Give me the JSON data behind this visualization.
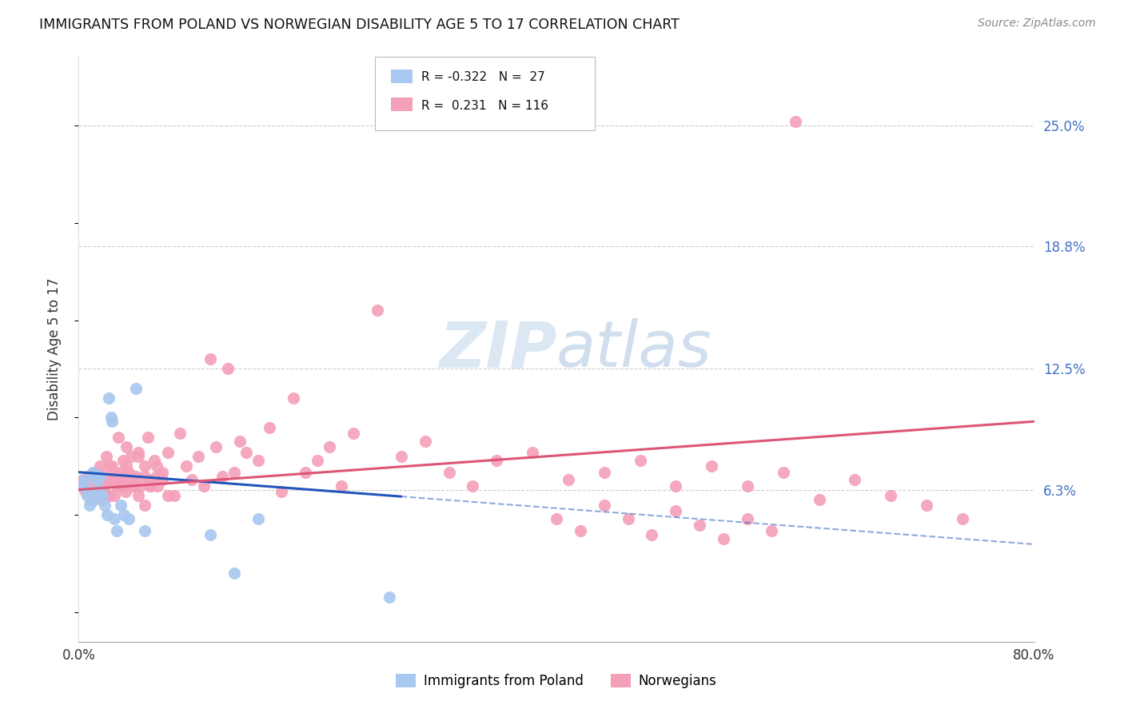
{
  "title": "IMMIGRANTS FROM POLAND VS NORWEGIAN DISABILITY AGE 5 TO 17 CORRELATION CHART",
  "source": "Source: ZipAtlas.com",
  "ylabel": "Disability Age 5 to 17",
  "ytick_labels": [
    "6.3%",
    "12.5%",
    "18.8%",
    "25.0%"
  ],
  "ytick_values": [
    0.063,
    0.125,
    0.188,
    0.25
  ],
  "xmin": 0.0,
  "xmax": 0.8,
  "ymin": -0.015,
  "ymax": 0.285,
  "legend_r_blue": "-0.322",
  "legend_n_blue": "27",
  "legend_r_pink": "0.231",
  "legend_n_pink": "116",
  "blue_color": "#a8c8f0",
  "pink_color": "#f4a0b8",
  "trendline_blue_color": "#2255bb",
  "trendline_pink_color": "#dd5577",
  "blue_scatter_x": [
    0.003,
    0.005,
    0.007,
    0.009,
    0.01,
    0.012,
    0.013,
    0.015,
    0.017,
    0.018,
    0.02,
    0.022,
    0.024,
    0.025,
    0.027,
    0.028,
    0.03,
    0.032,
    0.035,
    0.038,
    0.042,
    0.048,
    0.055,
    0.11,
    0.13,
    0.15,
    0.26
  ],
  "blue_scatter_y": [
    0.065,
    0.068,
    0.06,
    0.055,
    0.062,
    0.072,
    0.058,
    0.068,
    0.063,
    0.07,
    0.06,
    0.055,
    0.05,
    0.11,
    0.1,
    0.098,
    0.048,
    0.042,
    0.055,
    0.05,
    0.048,
    0.115,
    0.042,
    0.04,
    0.02,
    0.048,
    0.008
  ],
  "pink_scatter_x": [
    0.002,
    0.004,
    0.006,
    0.008,
    0.01,
    0.012,
    0.013,
    0.015,
    0.016,
    0.018,
    0.019,
    0.02,
    0.021,
    0.022,
    0.023,
    0.025,
    0.026,
    0.028,
    0.03,
    0.032,
    0.033,
    0.035,
    0.037,
    0.039,
    0.04,
    0.042,
    0.044,
    0.046,
    0.048,
    0.05,
    0.052,
    0.055,
    0.058,
    0.06,
    0.063,
    0.066,
    0.07,
    0.075,
    0.08,
    0.085,
    0.09,
    0.095,
    0.1,
    0.105,
    0.11,
    0.115,
    0.12,
    0.125,
    0.13,
    0.135,
    0.14,
    0.15,
    0.16,
    0.17,
    0.18,
    0.19,
    0.2,
    0.21,
    0.22,
    0.23,
    0.25,
    0.27,
    0.29,
    0.31,
    0.33,
    0.35,
    0.38,
    0.41,
    0.44,
    0.47,
    0.5,
    0.53,
    0.56,
    0.59,
    0.62,
    0.65,
    0.68,
    0.71,
    0.74,
    0.6,
    0.03,
    0.035,
    0.04,
    0.045,
    0.05,
    0.055,
    0.06,
    0.065,
    0.07,
    0.075,
    0.02,
    0.025,
    0.03,
    0.035,
    0.04,
    0.045,
    0.05,
    0.055,
    0.06,
    0.065,
    0.015,
    0.02,
    0.025,
    0.03,
    0.035,
    0.04,
    0.4,
    0.42,
    0.44,
    0.46,
    0.48,
    0.5,
    0.52,
    0.54,
    0.56,
    0.58
  ],
  "pink_scatter_y": [
    0.065,
    0.068,
    0.062,
    0.07,
    0.058,
    0.065,
    0.072,
    0.06,
    0.068,
    0.075,
    0.063,
    0.058,
    0.07,
    0.065,
    0.08,
    0.068,
    0.06,
    0.075,
    0.072,
    0.065,
    0.09,
    0.068,
    0.078,
    0.062,
    0.085,
    0.072,
    0.08,
    0.065,
    0.07,
    0.082,
    0.065,
    0.075,
    0.09,
    0.068,
    0.078,
    0.065,
    0.072,
    0.082,
    0.06,
    0.092,
    0.075,
    0.068,
    0.08,
    0.065,
    0.13,
    0.085,
    0.07,
    0.125,
    0.072,
    0.088,
    0.082,
    0.078,
    0.095,
    0.062,
    0.11,
    0.072,
    0.078,
    0.085,
    0.065,
    0.092,
    0.155,
    0.08,
    0.088,
    0.072,
    0.065,
    0.078,
    0.082,
    0.068,
    0.072,
    0.078,
    0.065,
    0.075,
    0.065,
    0.072,
    0.058,
    0.068,
    0.06,
    0.055,
    0.048,
    0.252,
    0.072,
    0.068,
    0.075,
    0.065,
    0.08,
    0.07,
    0.065,
    0.075,
    0.068,
    0.06,
    0.068,
    0.075,
    0.06,
    0.065,
    0.072,
    0.068,
    0.06,
    0.055,
    0.065,
    0.07,
    0.072,
    0.065,
    0.06,
    0.068,
    0.072,
    0.065,
    0.048,
    0.042,
    0.055,
    0.048,
    0.04,
    0.052,
    0.045,
    0.038,
    0.048,
    0.042
  ],
  "trendline_blue_x0": 0.0,
  "trendline_blue_x1": 0.8,
  "trendline_blue_y0": 0.072,
  "trendline_blue_y1": 0.035,
  "trendline_blue_solid_end": 0.27,
  "trendline_pink_x0": 0.0,
  "trendline_pink_x1": 0.8,
  "trendline_pink_y0": 0.063,
  "trendline_pink_y1": 0.098
}
